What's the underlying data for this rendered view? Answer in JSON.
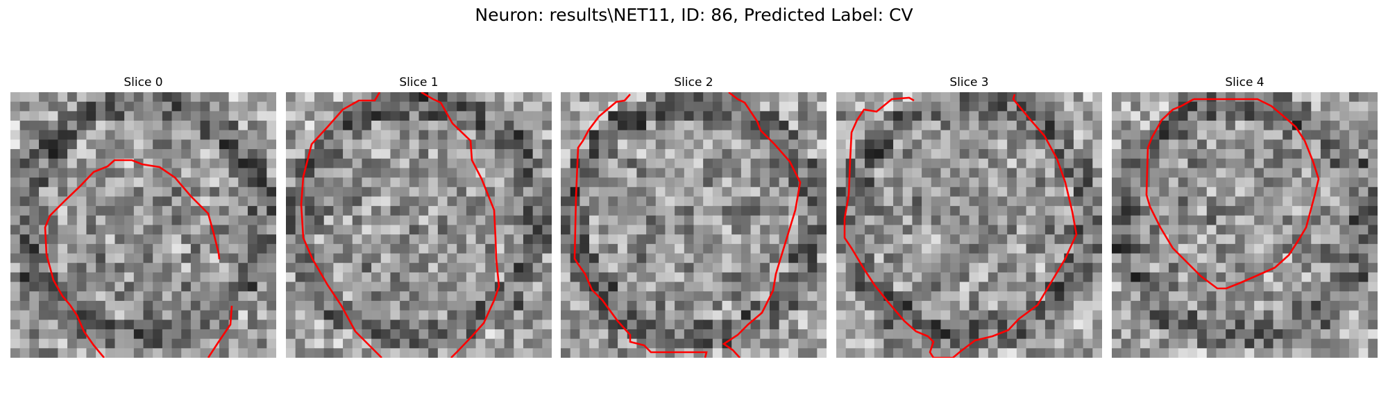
{
  "figure": {
    "title": "Neuron: results\\NET11, ID: 86, Predicted Label: CV"
  },
  "panels": [
    {
      "title": "Slice 0"
    },
    {
      "title": "Slice 1"
    },
    {
      "title": "Slice 2"
    },
    {
      "title": "Slice 3"
    },
    {
      "title": "Slice 4"
    }
  ],
  "colors": {
    "contour": "#ff0000",
    "image_colormap": "gray"
  }
}
